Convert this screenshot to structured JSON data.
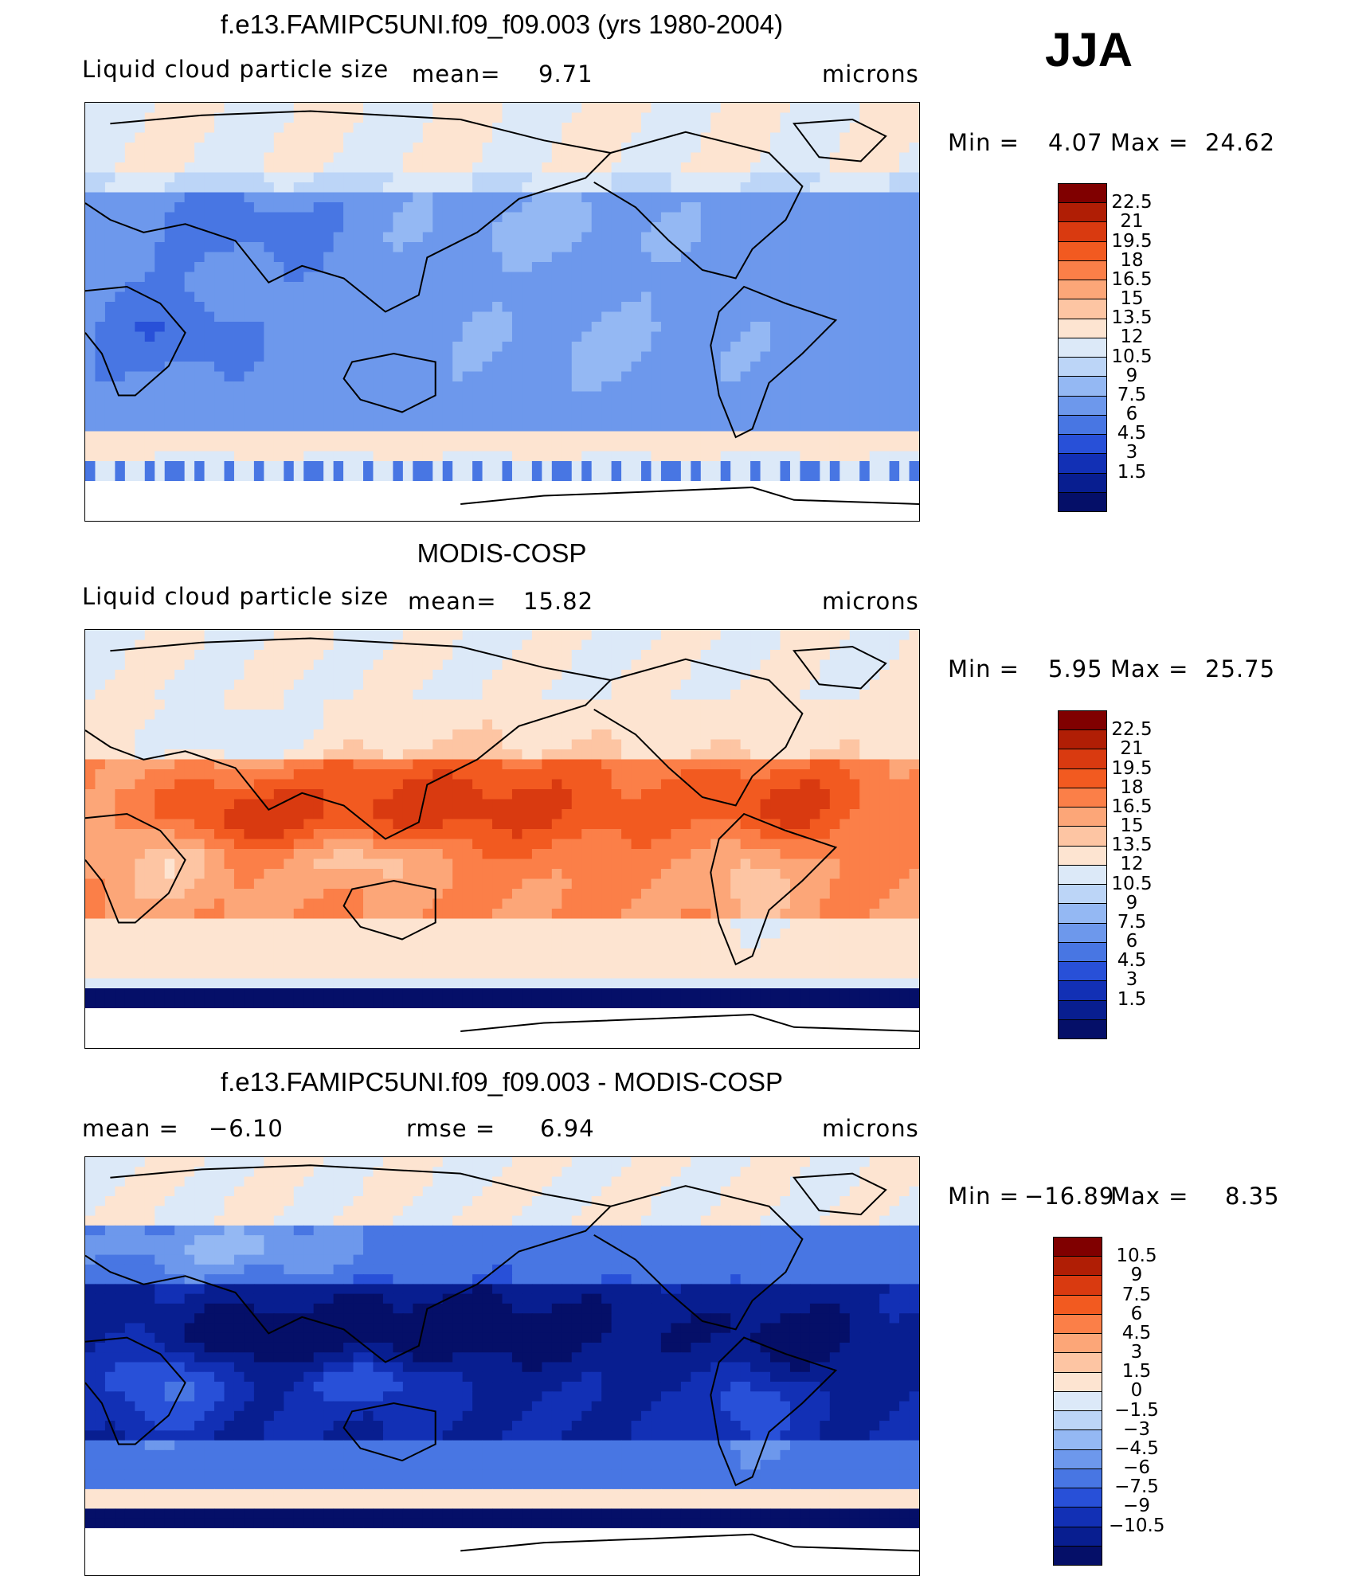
{
  "season": "JJA",
  "panels": [
    {
      "title": "f.e13.FAMIPC5UNI.f09_f09.003 (yrs 1980-2004)",
      "variable": "Liquid cloud particle size",
      "stat1_label": "mean=",
      "stat1_value": "9.71",
      "stat2_label": "",
      "stat2_value": "",
      "units": "microns",
      "min_label": "Min  =",
      "min_value": "4.07",
      "max_label": "Max  =",
      "max_value": "24.62",
      "field": "model",
      "legend_labels": [
        "22.5",
        "21",
        "19.5",
        "18",
        "16.5",
        "15",
        "13.5",
        "12",
        "10.5",
        "9",
        "7.5",
        "6",
        "4.5",
        "3",
        "1.5"
      ],
      "legend_colors": [
        "#800000",
        "#b01e05",
        "#d93a10",
        "#f25a20",
        "#fb7f48",
        "#fca678",
        "#fdc5a3",
        "#fde4d1",
        "#dce9f8",
        "#bcd5f7",
        "#94b8f3",
        "#6d98ec",
        "#4876e3",
        "#2850d8",
        "#1230b5",
        "#081e90",
        "#050f68"
      ]
    },
    {
      "title": "MODIS-COSP",
      "variable": "Liquid cloud particle size",
      "stat1_label": "mean=",
      "stat1_value": "15.82",
      "stat2_label": "",
      "stat2_value": "",
      "units": "microns",
      "min_label": "Min  =",
      "min_value": "5.95",
      "max_label": "Max  =",
      "max_value": "25.75",
      "field": "obs",
      "legend_labels": [
        "22.5",
        "21",
        "19.5",
        "18",
        "16.5",
        "15",
        "13.5",
        "12",
        "10.5",
        "9",
        "7.5",
        "6",
        "4.5",
        "3",
        "1.5"
      ],
      "legend_colors": [
        "#800000",
        "#b01e05",
        "#d93a10",
        "#f25a20",
        "#fb7f48",
        "#fca678",
        "#fdc5a3",
        "#fde4d1",
        "#dce9f8",
        "#bcd5f7",
        "#94b8f3",
        "#6d98ec",
        "#4876e3",
        "#2850d8",
        "#1230b5",
        "#081e90",
        "#050f68"
      ]
    },
    {
      "title": "f.e13.FAMIPC5UNI.f09_f09.003 - MODIS-COSP",
      "variable": "",
      "stat1_label": "mean  =",
      "stat1_value": "−6.10",
      "stat2_label": "rmse  =",
      "stat2_value": "6.94",
      "units": "microns",
      "min_label": "Min  =",
      "min_value": "−16.89",
      "max_label": "Max  =",
      "max_value": "8.35",
      "field": "diff",
      "legend_labels": [
        "10.5",
        "9",
        "7.5",
        "6",
        "4.5",
        "3",
        "1.5",
        "0",
        "−1.5",
        "−3",
        "−4.5",
        "−6",
        "−7.5",
        "−9",
        "−10.5"
      ],
      "legend_colors": [
        "#800000",
        "#b01e05",
        "#d93a10",
        "#f25a20",
        "#fb7f48",
        "#fca678",
        "#fdc5a3",
        "#fde4d1",
        "#dce9f8",
        "#bcd5f7",
        "#94b8f3",
        "#6d98ec",
        "#4876e3",
        "#2850d8",
        "#1230b5",
        "#081e90",
        "#050f68"
      ]
    }
  ]
}
